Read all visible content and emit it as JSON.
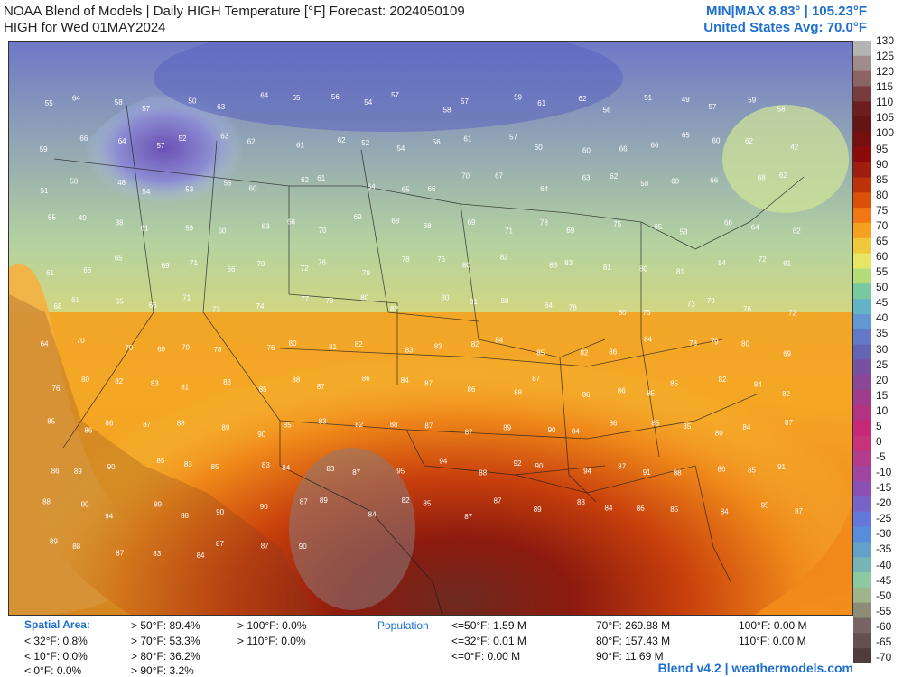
{
  "header": {
    "title_line1": "NOAA Blend of Models | Daily HIGH Temperature [°F] Forecast: 2024050109",
    "title_line2": "HIGH for Wed 01MAY2024",
    "minmax": "MIN|MAX 8.83° | 105.23°F",
    "us_avg": "United States Avg: 70.0°F"
  },
  "colorbar": {
    "ticks": [
      "130",
      "125",
      "120",
      "115",
      "110",
      "105",
      "100",
      "95",
      "90",
      "85",
      "80",
      "75",
      "70",
      "65",
      "60",
      "55",
      "50",
      "45",
      "40",
      "35",
      "30",
      "25",
      "20",
      "15",
      "10",
      "5",
      "0",
      "-5",
      "-10",
      "-15",
      "-20",
      "-25",
      "-30",
      "-35",
      "-40",
      "-45",
      "-50",
      "-55",
      "-60",
      "-65",
      "-70"
    ],
    "colors": [
      "#b4b4b4",
      "#a08c8c",
      "#8c6464",
      "#783c3c",
      "#6e1e1e",
      "#641414",
      "#780f0f",
      "#8c0a0a",
      "#a01e0f",
      "#be320a",
      "#dc500a",
      "#f07814",
      "#f5a01e",
      "#f0c83c",
      "#e6e664",
      "#b4dc78",
      "#78c8a0",
      "#64b4c8",
      "#6496d2",
      "#6478c8",
      "#6464b4",
      "#7850a0",
      "#8c4696",
      "#a03c8c",
      "#b43282",
      "#c82878",
      "#c83278",
      "#b43c8c",
      "#a046a0",
      "#8c50b4",
      "#7864c8",
      "#6478dc",
      "#5a8cdc",
      "#64a0c8",
      "#78b4b4",
      "#8cc8a0",
      "#a0b48c",
      "#8c8c78",
      "#786464",
      "#645050",
      "#503c3c"
    ]
  },
  "temp_labels": [
    "55",
    "64",
    "58",
    "57",
    "50",
    "63",
    "64",
    "65",
    "56",
    "54",
    "57",
    "58",
    "57",
    "59",
    "61",
    "62",
    "56",
    "51",
    "49",
    "57",
    "59",
    "58",
    "59",
    "66",
    "64",
    "57",
    "52",
    "63",
    "62",
    "61",
    "62",
    "52",
    "54",
    "56",
    "61",
    "57",
    "60",
    "60",
    "66",
    "66",
    "65",
    "60",
    "62",
    "42",
    "51",
    "50",
    "48",
    "54",
    "53",
    "55",
    "60",
    "62",
    "61",
    "64",
    "65",
    "66",
    "70",
    "67",
    "64",
    "63",
    "62",
    "58",
    "60",
    "66",
    "68",
    "62",
    "55",
    "49",
    "38",
    "61",
    "59",
    "60",
    "63",
    "66",
    "70",
    "69",
    "68",
    "68",
    "69",
    "71",
    "78",
    "69",
    "75",
    "65",
    "53",
    "66",
    "64",
    "62",
    "61",
    "66",
    "65",
    "69",
    "71",
    "66",
    "70",
    "72",
    "76",
    "79",
    "78",
    "76",
    "80",
    "82",
    "83",
    "83",
    "81",
    "80",
    "81",
    "84",
    "72",
    "61",
    "68",
    "61",
    "65",
    "66",
    "71",
    "73",
    "74",
    "77",
    "78",
    "80",
    "82",
    "80",
    "81",
    "80",
    "84",
    "78",
    "80",
    "75",
    "73",
    "79",
    "76",
    "72",
    "64",
    "70",
    "70",
    "69",
    "70",
    "78",
    "76",
    "80",
    "81",
    "82",
    "83",
    "83",
    "82",
    "84",
    "85",
    "82",
    "86",
    "84",
    "78",
    "79",
    "80",
    "69",
    "76",
    "80",
    "82",
    "83",
    "81",
    "83",
    "85",
    "88",
    "87",
    "86",
    "84",
    "87",
    "86",
    "88",
    "87",
    "86",
    "86",
    "85",
    "85",
    "82",
    "84",
    "82",
    "85",
    "86",
    "86",
    "87",
    "88",
    "89",
    "90",
    "85",
    "83",
    "82",
    "88",
    "87",
    "87",
    "89",
    "90",
    "84",
    "86",
    "85",
    "85",
    "80",
    "84",
    "87",
    "86",
    "89",
    "90",
    "85",
    "83",
    "85",
    "83",
    "84",
    "83",
    "87",
    "95",
    "94",
    "88",
    "92",
    "90",
    "94",
    "87",
    "91",
    "88",
    "86",
    "85",
    "91",
    "88",
    "90",
    "94",
    "89",
    "88",
    "90",
    "90",
    "87",
    "89",
    "84",
    "82",
    "85",
    "87",
    "87",
    "89",
    "88",
    "84",
    "86",
    "85",
    "84",
    "95",
    "87",
    "89",
    "88",
    "87",
    "83",
    "84",
    "87",
    "87",
    "90"
  ],
  "stats": {
    "spatial_area_label": "Spatial Area:",
    "population_label": "Population",
    "items": [
      "< 32°F: 0.8%",
      "< 10°F: 0.0%",
      "< 0°F: 0.0%",
      "> 50°F: 89.4%",
      "> 70°F: 53.3%",
      "> 80°F: 36.2%",
      "> 90°F: 3.2%",
      "> 100°F: 0.0%",
      "> 110°F: 0.0%",
      "<=50°F: 1.59 M",
      "<=32°F: 0.01 M",
      "<=0°F: 0.00 M",
      "70°F: 269.88 M",
      "80°F: 157.43 M",
      "90°F: 11.69 M",
      "100°F: 0.00 M",
      "110°F: 0.00 M"
    ]
  },
  "credit": "Blend v4.2 | weathermodels.com"
}
